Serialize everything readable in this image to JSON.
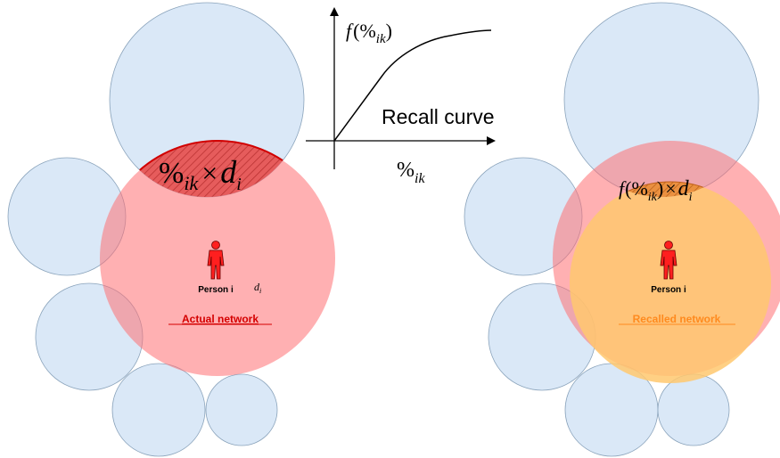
{
  "colors": {
    "group_fill": "#d6e6f6",
    "group_stroke": "#7f9ab3",
    "actual_fill": "#ff7f82",
    "recalled_fill": "#ffc76e",
    "overlap_fill": "#e05a5a",
    "overlap_stroke": "#d10000",
    "recalled_overlap_fill": "#e6873a",
    "person_fill": "#ff1f1f",
    "actual_label": "#d40000",
    "recalled_label": "#ff8a1e"
  },
  "curve": {
    "y_label_func": "f",
    "y_label_open": "(",
    "y_label_pct": "%",
    "y_label_sub": "ik",
    "y_label_close": ")",
    "title": "Recall curve",
    "x_label_pct": "%",
    "x_label_sub": "ik"
  },
  "left_panel": {
    "overlap_pct": "%",
    "overlap_sub": "ik",
    "overlap_times": "×",
    "overlap_d": "d",
    "overlap_d_sub": "i",
    "person_label": "Person i",
    "degree_d": "d",
    "degree_sub": "i",
    "network_label": "Actual network"
  },
  "right_panel": {
    "overlap_func": "f",
    "overlap_open": "(",
    "overlap_pct": "%",
    "overlap_sub": "ik",
    "overlap_close": ")",
    "overlap_times": "×",
    "overlap_d": "d",
    "overlap_d_sub": "i",
    "person_label": "Person i",
    "network_label": "Recalled network"
  },
  "icons": [
    "person-icon",
    "arrow-head-icon"
  ]
}
